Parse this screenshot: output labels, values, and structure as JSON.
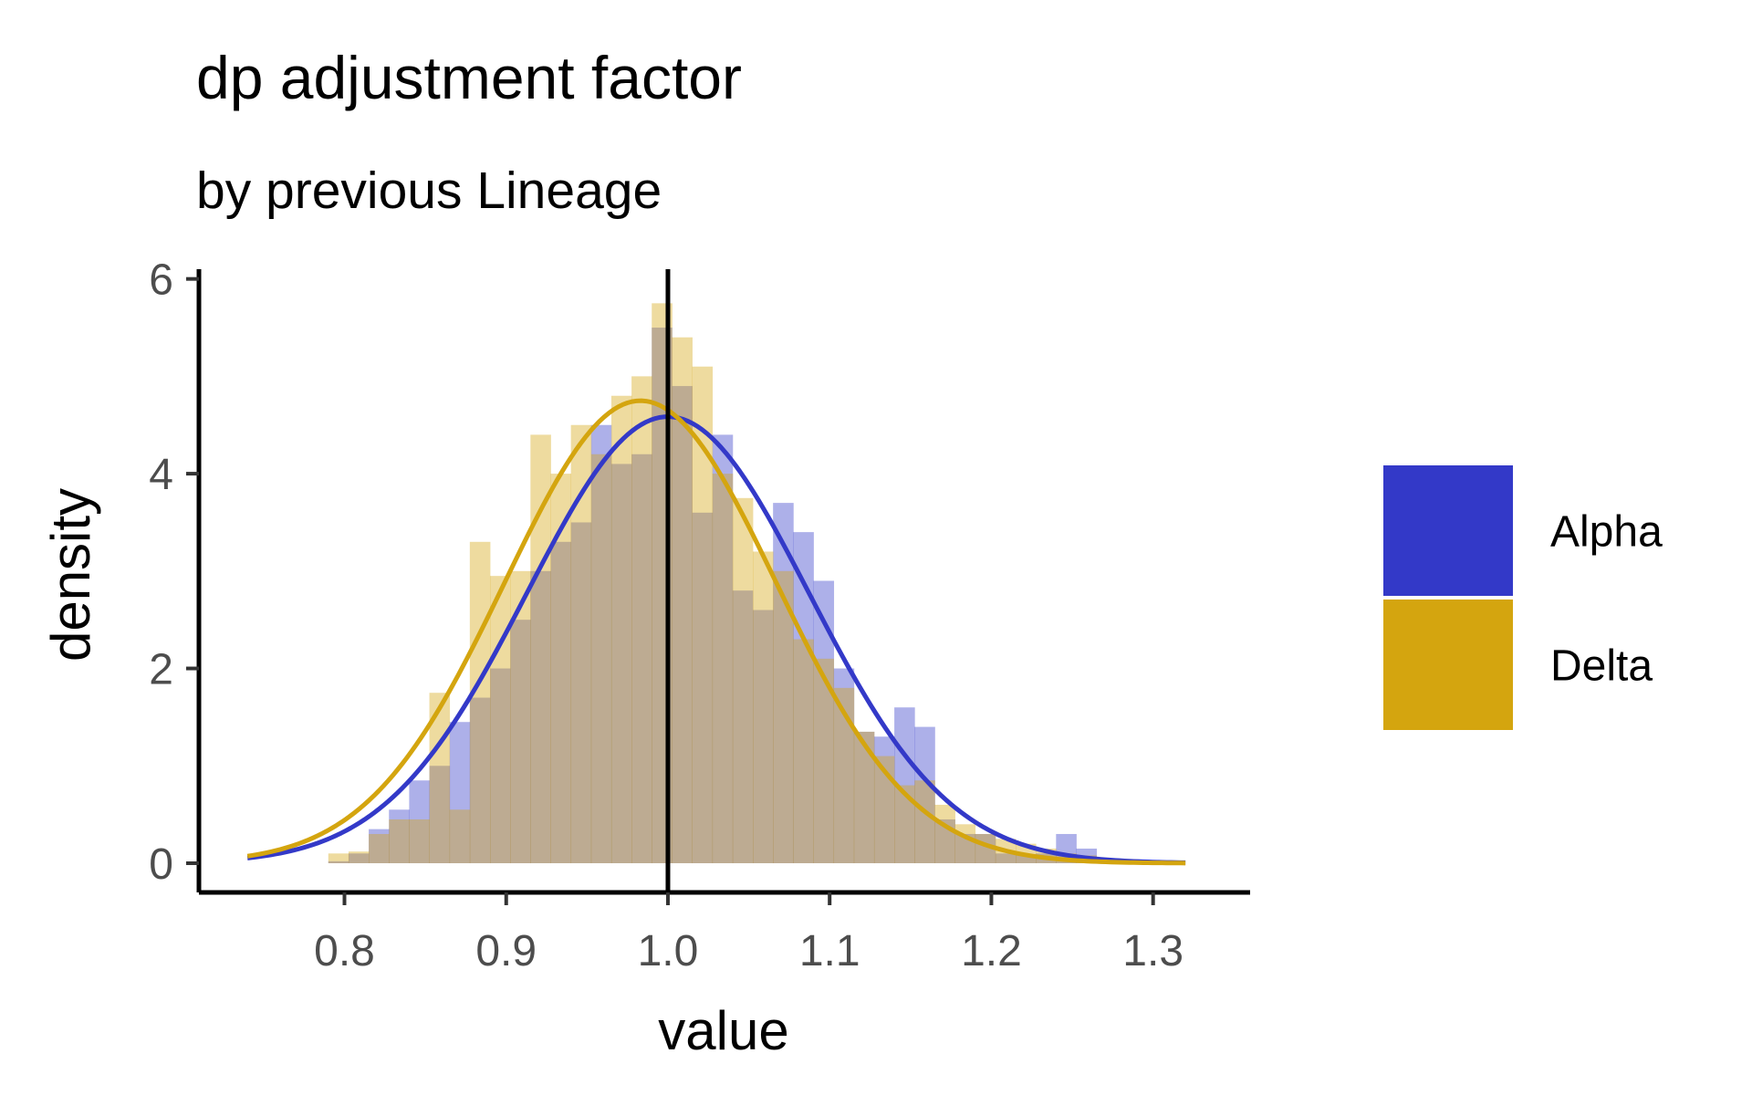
{
  "chart_data": {
    "type": "histogram",
    "title": "dp adjustment factor",
    "subtitle": "by previous Lineage",
    "xlabel": "value",
    "ylabel": "density",
    "xlim": [
      0.71,
      1.36
    ],
    "ylim": [
      -0.3,
      6.1
    ],
    "x_ticks": [
      "0.8",
      "0.9",
      "1.0",
      "1.1",
      "1.2",
      "1.3"
    ],
    "y_ticks": [
      "0",
      "2",
      "4",
      "6"
    ],
    "vline": 1.0,
    "grid": false,
    "legend_position": "right",
    "bin_start": 0.79,
    "bin_width": 0.0125,
    "series": [
      {
        "name": "Alpha",
        "color": "#3339C8",
        "hist_alpha": 0.4,
        "curve": {
          "mean": 1.0,
          "sd": 0.087
        },
        "hist_values": [
          0.02,
          0.1,
          0.35,
          0.55,
          0.85,
          1.0,
          1.45,
          1.7,
          2.0,
          2.5,
          3.0,
          3.3,
          3.5,
          4.5,
          4.1,
          4.2,
          5.5,
          4.9,
          3.6,
          4.4,
          2.8,
          2.6,
          3.7,
          3.4,
          2.9,
          2.0,
          1.35,
          1.3,
          1.6,
          1.4,
          0.45,
          0.3,
          0.3,
          0.1,
          0.08,
          0.1,
          0.3,
          0.15,
          0.05,
          0.02
        ]
      },
      {
        "name": "Delta",
        "color": "#D4A50F",
        "hist_alpha": 0.4,
        "curve": {
          "mean": 0.983,
          "sd": 0.084
        },
        "hist_values": [
          0.1,
          0.12,
          0.3,
          0.45,
          0.45,
          1.75,
          0.55,
          3.3,
          2.95,
          3.0,
          4.4,
          4.0,
          4.5,
          4.2,
          4.8,
          5.0,
          5.75,
          5.4,
          5.1,
          4.0,
          3.75,
          3.2,
          3.0,
          2.3,
          2.1,
          1.8,
          1.35,
          1.1,
          0.8,
          0.85,
          0.6,
          0.4,
          0.3,
          0.25,
          0.2,
          0.15,
          0.1,
          0.08,
          0.05,
          0.03,
          0.02,
          0.02
        ]
      }
    ]
  }
}
